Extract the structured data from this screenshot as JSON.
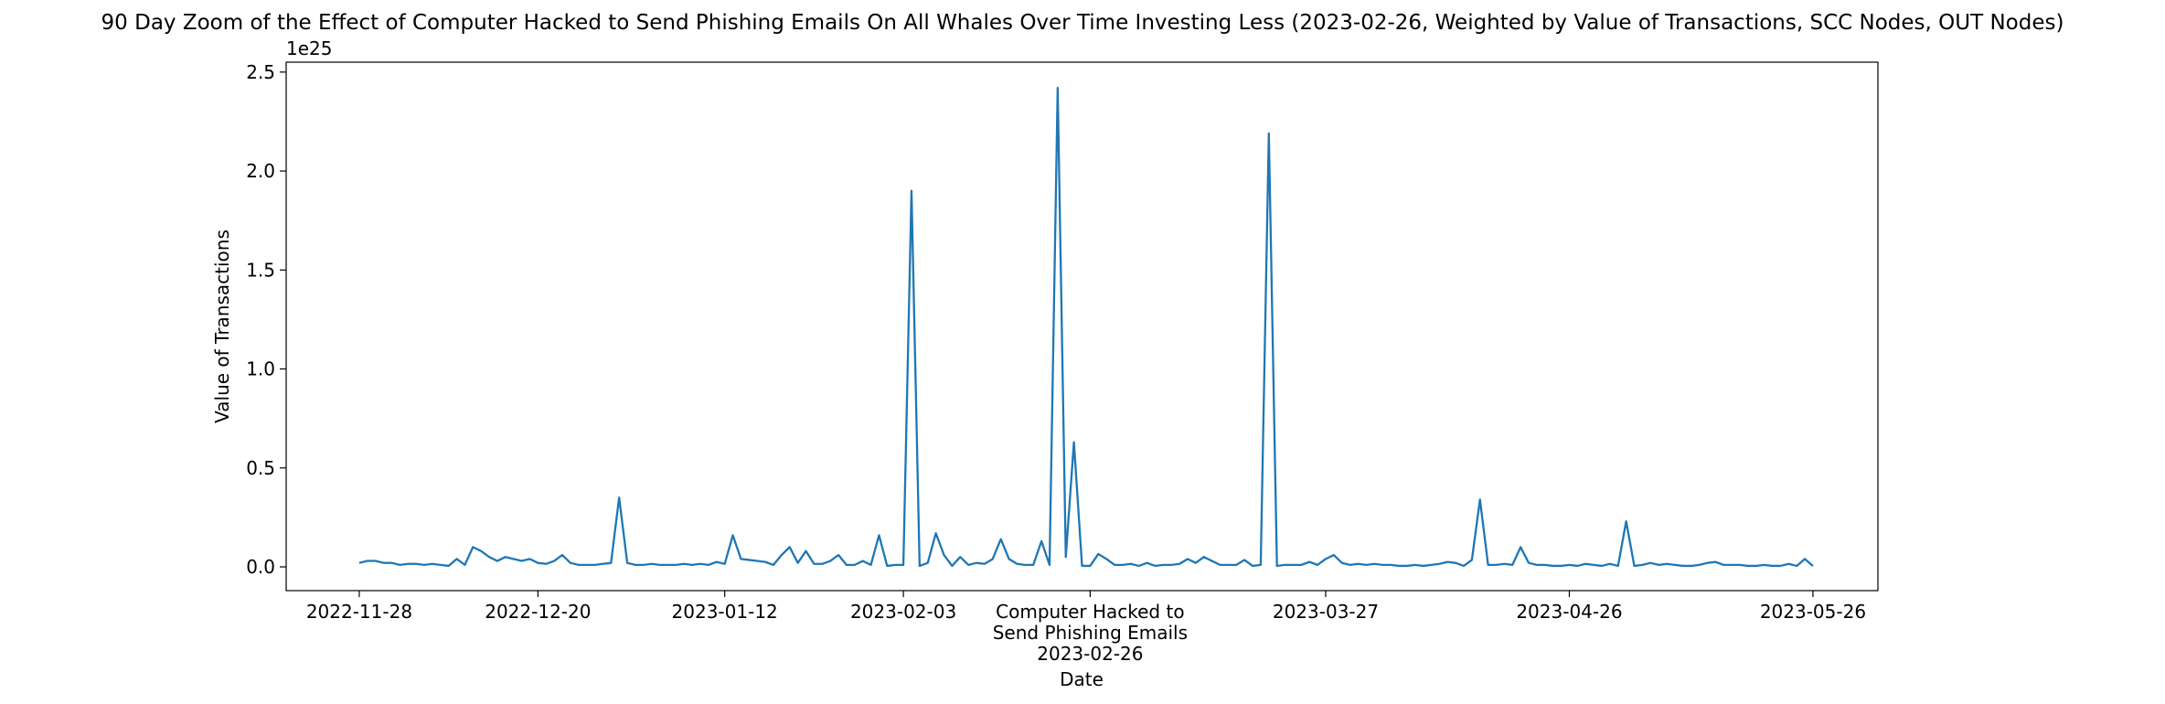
{
  "chart_data": {
    "type": "line",
    "title": "90 Day Zoom of the Effect of Computer Hacked to Send Phishing Emails On All Whales Over Time Investing Less (2023-02-26, Weighted by Value of Transactions, SCC Nodes, OUT Nodes)",
    "xlabel": "Date",
    "ylabel": "Value of Transactions",
    "y_offset_label": "1e25",
    "xlim": [
      "2022-11-19",
      "2023-06-03"
    ],
    "ylim": [
      -0.12,
      2.55
    ],
    "xticks": [
      "2022-11-28",
      "2022-12-20",
      "2023-01-12",
      "2023-02-03",
      {
        "value": "2023-02-26",
        "label": "Computer Hacked to\nSend Phishing Emails\n2023-02-26"
      },
      "2023-03-27",
      "2023-04-26",
      "2023-05-26"
    ],
    "yticks": [
      {
        "value": 0,
        "label": "0.0"
      },
      0.5,
      {
        "value": 1,
        "label": "1.0"
      },
      1.5,
      {
        "value": 2,
        "label": "2.0"
      },
      2.5
    ],
    "grid": false,
    "x": [
      "2022-11-28",
      "2022-11-29",
      "2022-11-30",
      "2022-12-01",
      "2022-12-02",
      "2022-12-03",
      "2022-12-04",
      "2022-12-05",
      "2022-12-06",
      "2022-12-07",
      "2022-12-08",
      "2022-12-09",
      "2022-12-10",
      "2022-12-11",
      "2022-12-12",
      "2022-12-13",
      "2022-12-14",
      "2022-12-15",
      "2022-12-16",
      "2022-12-17",
      "2022-12-18",
      "2022-12-19",
      "2022-12-20",
      "2022-12-21",
      "2022-12-22",
      "2022-12-23",
      "2022-12-24",
      "2022-12-25",
      "2022-12-26",
      "2022-12-27",
      "2022-12-28",
      "2022-12-29",
      "2022-12-30",
      "2022-12-31",
      "2023-01-01",
      "2023-01-02",
      "2023-01-03",
      "2023-01-04",
      "2023-01-05",
      "2023-01-06",
      "2023-01-07",
      "2023-01-08",
      "2023-01-09",
      "2023-01-10",
      "2023-01-11",
      "2023-01-12",
      "2023-01-13",
      "2023-01-14",
      "2023-01-15",
      "2023-01-16",
      "2023-01-17",
      "2023-01-18",
      "2023-01-19",
      "2023-01-20",
      "2023-01-21",
      "2023-01-22",
      "2023-01-23",
      "2023-01-24",
      "2023-01-25",
      "2023-01-26",
      "2023-01-27",
      "2023-01-28",
      "2023-01-29",
      "2023-01-30",
      "2023-01-31",
      "2023-02-01",
      "2023-02-02",
      "2023-02-03",
      "2023-02-04",
      "2023-02-05",
      "2023-02-06",
      "2023-02-07",
      "2023-02-08",
      "2023-02-09",
      "2023-02-10",
      "2023-02-11",
      "2023-02-12",
      "2023-02-13",
      "2023-02-14",
      "2023-02-15",
      "2023-02-16",
      "2023-02-17",
      "2023-02-18",
      "2023-02-19",
      "2023-02-20",
      "2023-02-21",
      "2023-02-22",
      "2023-02-23",
      "2023-02-24",
      "2023-02-25",
      "2023-02-26",
      "2023-02-27",
      "2023-02-28",
      "2023-03-01",
      "2023-03-02",
      "2023-03-03",
      "2023-03-04",
      "2023-03-05",
      "2023-03-06",
      "2023-03-07",
      "2023-03-08",
      "2023-03-09",
      "2023-03-10",
      "2023-03-11",
      "2023-03-12",
      "2023-03-13",
      "2023-03-14",
      "2023-03-15",
      "2023-03-16",
      "2023-03-17",
      "2023-03-18",
      "2023-03-19",
      "2023-03-20",
      "2023-03-21",
      "2023-03-22",
      "2023-03-23",
      "2023-03-24",
      "2023-03-25",
      "2023-03-26",
      "2023-03-27",
      "2023-03-28",
      "2023-03-29",
      "2023-03-30",
      "2023-03-31",
      "2023-04-01",
      "2023-04-02",
      "2023-04-03",
      "2023-04-04",
      "2023-04-05",
      "2023-04-06",
      "2023-04-07",
      "2023-04-08",
      "2023-04-09",
      "2023-04-10",
      "2023-04-11",
      "2023-04-12",
      "2023-04-13",
      "2023-04-14",
      "2023-04-15",
      "2023-04-16",
      "2023-04-17",
      "2023-04-18",
      "2023-04-19",
      "2023-04-20",
      "2023-04-21",
      "2023-04-22",
      "2023-04-23",
      "2023-04-24",
      "2023-04-25",
      "2023-04-26",
      "2023-04-27",
      "2023-04-28",
      "2023-04-29",
      "2023-04-30",
      "2023-05-01",
      "2023-05-02",
      "2023-05-03",
      "2023-05-04",
      "2023-05-05",
      "2023-05-06",
      "2023-05-07",
      "2023-05-08",
      "2023-05-09",
      "2023-05-10",
      "2023-05-11",
      "2023-05-12",
      "2023-05-13",
      "2023-05-14",
      "2023-05-15",
      "2023-05-16",
      "2023-05-17",
      "2023-05-18",
      "2023-05-19",
      "2023-05-20",
      "2023-05-21",
      "2023-05-22",
      "2023-05-23",
      "2023-05-24",
      "2023-05-25",
      "2023-05-26"
    ],
    "series": [
      {
        "name": "Value of Transactions",
        "color": "#1f77b4",
        "values": [
          0.02,
          0.03,
          0.03,
          0.02,
          0.02,
          0.01,
          0.015,
          0.015,
          0.01,
          0.015,
          0.01,
          0.005,
          0.04,
          0.01,
          0.1,
          0.08,
          0.05,
          0.03,
          0.05,
          0.04,
          0.03,
          0.04,
          0.02,
          0.015,
          0.03,
          0.06,
          0.02,
          0.01,
          0.01,
          0.01,
          0.015,
          0.02,
          0.35,
          0.02,
          0.01,
          0.01,
          0.015,
          0.01,
          0.01,
          0.01,
          0.015,
          0.01,
          0.015,
          0.01,
          0.025,
          0.015,
          0.16,
          0.04,
          0.035,
          0.03,
          0.025,
          0.01,
          0.06,
          0.1,
          0.02,
          0.08,
          0.015,
          0.015,
          0.03,
          0.06,
          0.01,
          0.01,
          0.03,
          0.01,
          0.16,
          0.005,
          0.01,
          0.01,
          1.9,
          0.005,
          0.02,
          0.17,
          0.06,
          0.005,
          0.05,
          0.01,
          0.02,
          0.015,
          0.04,
          0.14,
          0.04,
          0.015,
          0.01,
          0.01,
          0.13,
          0.01,
          2.42,
          0.05,
          0.63,
          0.005,
          0.005,
          0.065,
          0.04,
          0.01,
          0.01,
          0.015,
          0.005,
          0.02,
          0.005,
          0.01,
          0.01,
          0.015,
          0.04,
          0.02,
          0.05,
          0.03,
          0.01,
          0.01,
          0.01,
          0.035,
          0.005,
          0.01,
          2.19,
          0.005,
          0.01,
          0.01,
          0.01,
          0.025,
          0.01,
          0.04,
          0.06,
          0.02,
          0.01,
          0.015,
          0.01,
          0.015,
          0.01,
          0.01,
          0.005,
          0.005,
          0.01,
          0.005,
          0.01,
          0.015,
          0.025,
          0.02,
          0.005,
          0.035,
          0.34,
          0.01,
          0.01,
          0.015,
          0.01,
          0.1,
          0.02,
          0.01,
          0.01,
          0.005,
          0.005,
          0.01,
          0.005,
          0.015,
          0.01,
          0.005,
          0.015,
          0.005,
          0.23,
          0.005,
          0.01,
          0.02,
          0.01,
          0.015,
          0.01,
          0.005,
          0.005,
          0.01,
          0.02,
          0.025,
          0.01,
          0.01,
          0.01,
          0.005,
          0.005,
          0.01,
          0.005,
          0.005,
          0.015,
          0.005,
          0.04,
          0.005
        ]
      }
    ]
  }
}
